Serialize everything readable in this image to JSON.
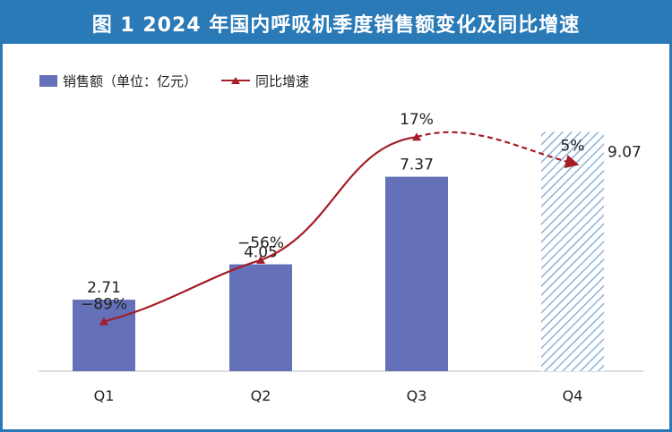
{
  "chart_data": {
    "type": "bar",
    "title": "图 1 2024 年国内呼吸机季度销售额变化及同比增速",
    "categories": [
      "Q1",
      "Q2",
      "Q3",
      "Q4"
    ],
    "series": [
      {
        "name": "销售额（单位：亿元）",
        "type": "bar",
        "values": [
          2.71,
          4.05,
          7.37,
          9.07
        ],
        "labels": [
          "2.71",
          "4.05",
          "7.37",
          "9.07"
        ],
        "color": "#6470b8",
        "estimated": [
          false,
          false,
          false,
          true
        ]
      },
      {
        "name": "同比增速",
        "type": "line",
        "values": [
          -89,
          -56,
          17,
          5
        ],
        "labels": [
          "−89%",
          "−56%",
          "17%",
          "5%"
        ],
        "unit": "%",
        "color": "#a51d26",
        "dashed_segments": [
          [
            2,
            3
          ]
        ]
      }
    ],
    "legend_position": "top-left",
    "grid": false
  },
  "colors": {
    "frame": "#2a7ab8",
    "bar": "#6470b8",
    "estimate_hatch": "#8fb3d8",
    "line": "#a51d26"
  }
}
